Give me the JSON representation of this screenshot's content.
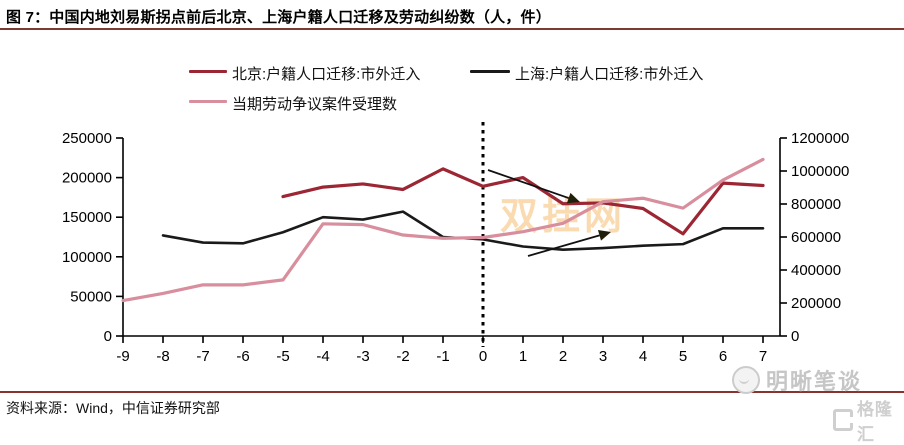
{
  "title": "图 7：中国内地刘易斯拐点前后北京、上海户籍人口迁移及劳动纠纷数（人，件）",
  "source": "资料来源：Wind，中信证券研究部",
  "watermarks": {
    "center": "双挂网",
    "brand": "明晰笔谈",
    "corner": "格隆汇"
  },
  "colors": {
    "beijing_line": "#9c2633",
    "shanghai_line": "#1a1a1a",
    "labor_line": "#d88e9c",
    "rule": "#7d3a31",
    "center_watermark": "#f2aa45",
    "axis": "#000000"
  },
  "chart_data": {
    "type": "line",
    "x": [
      -9,
      -8,
      -7,
      -6,
      -5,
      -4,
      -3,
      -2,
      -1,
      0,
      1,
      2,
      3,
      4,
      5,
      6,
      7
    ],
    "series": [
      {
        "name": "北京:户籍人口迁移:市外迁入",
        "axis": "left",
        "color": "#9c2633",
        "x_start": -5,
        "values": [
          176000,
          188000,
          192000,
          185000,
          211000,
          189000,
          200000,
          167000,
          168000,
          161000,
          129000,
          193000,
          190000
        ]
      },
      {
        "name": "上海:户籍人口迁移:市外迁入",
        "axis": "left",
        "color": "#1a1a1a",
        "x_start": -8,
        "values": [
          127000,
          118000,
          117000,
          131000,
          150000,
          147000,
          157000,
          125000,
          122000,
          113000,
          109000,
          111000,
          114000,
          116000,
          136000,
          136000
        ]
      },
      {
        "name": "当期劳动争议案件受理数",
        "axis": "right",
        "color": "#d88e9c",
        "x_start": -9,
        "values": [
          215000,
          258000,
          310000,
          310000,
          340000,
          680000,
          675000,
          612000,
          592000,
          597000,
          632000,
          683000,
          814000,
          835000,
          775000,
          945000,
          1070000
        ]
      }
    ],
    "left_axis": {
      "min": 0,
      "max": 250000,
      "step": 50000
    },
    "right_axis": {
      "min": 0,
      "max": 1200000,
      "step": 200000
    },
    "vline_x": 0,
    "grid": false,
    "legend_position": "top"
  }
}
